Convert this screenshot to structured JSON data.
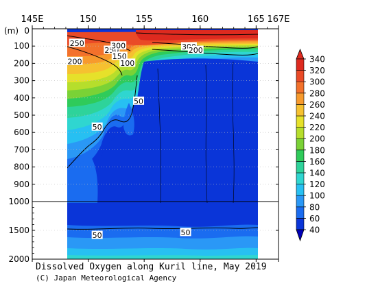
{
  "chart_data": {
    "type": "heatmap",
    "title": "Dissolved Oxygen along Kuril line, May 2019",
    "credit": "(C) Japan Meteorological Agency",
    "y_unit_label": "(m)",
    "x_ticks": [
      {
        "value": 145,
        "label": "145E"
      },
      {
        "value": 150,
        "label": "150"
      },
      {
        "value": 155,
        "label": "155"
      },
      {
        "value": 160,
        "label": "160"
      },
      {
        "value": 165,
        "label": "165"
      },
      {
        "value": 167,
        "label": "167E"
      }
    ],
    "xlim": [
      145,
      167
    ],
    "data_xlim": [
      148,
      165
    ],
    "ylim": [
      0,
      2000
    ],
    "y_break": 1000,
    "y_ticks_upper": [
      0,
      100,
      200,
      300,
      400,
      500,
      600,
      700,
      800,
      900,
      1000
    ],
    "y_ticks_lower": [
      1500,
      2000
    ],
    "colorbar": {
      "levels": [
        40,
        60,
        80,
        100,
        120,
        140,
        160,
        180,
        200,
        220,
        240,
        260,
        280,
        300,
        320,
        340
      ],
      "colors": [
        "#0a35d8",
        "#1a6cf0",
        "#2a98f6",
        "#27c0f2",
        "#2fd6d0",
        "#2ed39a",
        "#2fcb5a",
        "#7ad236",
        "#b6de2c",
        "#e6e12a",
        "#f6c130",
        "#f79a2d",
        "#f3712b",
        "#ea4a27",
        "#de2a1f"
      ]
    },
    "contour_labels": [
      {
        "text": "250",
        "lon": 149.0,
        "depth": 85
      },
      {
        "text": "200",
        "lon": 148.8,
        "depth": 190
      },
      {
        "text": "250",
        "lon": 152.1,
        "depth": 125
      },
      {
        "text": "300",
        "lon": 152.7,
        "depth": 100
      },
      {
        "text": "150",
        "lon": 152.8,
        "depth": 160
      },
      {
        "text": "100",
        "lon": 153.5,
        "depth": 200
      },
      {
        "text": "50",
        "lon": 154.5,
        "depth": 420
      },
      {
        "text": "50",
        "lon": 150.8,
        "depth": 570
      },
      {
        "text": "300",
        "lon": 159.0,
        "depth": 105
      },
      {
        "text": "200",
        "lon": 159.6,
        "depth": 125
      },
      {
        "text": "50",
        "lon": 150.8,
        "depth": 1590
      },
      {
        "text": "50",
        "lon": 158.7,
        "depth": 1540
      }
    ]
  }
}
